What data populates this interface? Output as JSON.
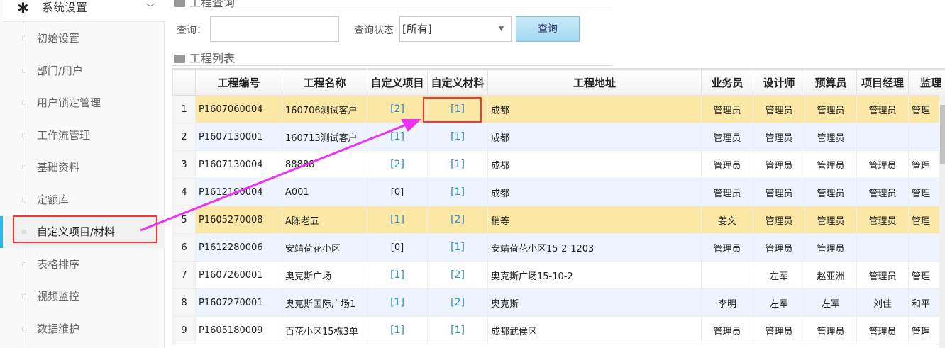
{
  "sidebar": {
    "section": "系统设置",
    "icon": "gear-icon",
    "items": [
      {
        "label": "初始设置"
      },
      {
        "label": "部门/用户"
      },
      {
        "label": "用户锁定管理"
      },
      {
        "label": "工作流管理"
      },
      {
        "label": "基础资料"
      },
      {
        "label": "定额库"
      },
      {
        "label": "自定义项目/材料",
        "active": true
      },
      {
        "label": "表格排序"
      },
      {
        "label": "视频监控"
      },
      {
        "label": "数据维护"
      }
    ]
  },
  "query": {
    "section": "工程查询",
    "query_label": "查询：",
    "query_value": "",
    "status_label": "查询状态",
    "status_value": "[所有]",
    "button": "查询"
  },
  "list": {
    "section": "工程列表",
    "columns": [
      "",
      "工程编号",
      "工程名称",
      "自定义项目",
      "自定义材料",
      "工程地址",
      "业务员",
      "设计师",
      "预算员",
      "项目经理",
      "监理"
    ],
    "rows": [
      [
        "1",
        "P1607060004",
        "160706测试客户",
        "[2]",
        "[1]",
        "成都",
        "管理员",
        "管理员",
        "管理员",
        "管理员",
        "管理"
      ],
      [
        "2",
        "P1607130001",
        "160713测试客户",
        "[1]",
        "[1]",
        "成都",
        "管理员",
        "管理员",
        "管理员",
        "",
        ""
      ],
      [
        "3",
        "P1607130004",
        "88888",
        "[2]",
        "[1]",
        "成都",
        "管理员",
        "管理员",
        "管理员",
        "管理员",
        "管理"
      ],
      [
        "4",
        "P1612190004",
        "A001",
        "[0]",
        "[1]",
        "成都",
        "管理员",
        "管理员",
        "管理员",
        "管理员",
        "管理"
      ],
      [
        "5",
        "P1605270008",
        "A陈老五",
        "[1]",
        "[2]",
        "稍等",
        "姜文",
        "管理员",
        "管理员",
        "管理员",
        "管理"
      ],
      [
        "6",
        "P1612280006",
        "安靖荷花小区",
        "[0]",
        "[1]",
        "安靖荷花小区15-2-1203",
        "管理员",
        "管理员",
        "管理员",
        "",
        ""
      ],
      [
        "7",
        "P1607260001",
        "奥克斯广场",
        "[1]",
        "[2]",
        "奥克斯广场15-10-2",
        "",
        "左军",
        "赵亚洲",
        "管理员",
        "管理"
      ],
      [
        "8",
        "P1607270001",
        "奥克斯国际广场1",
        "[1]",
        "[2]",
        "奥克斯",
        "李明",
        "左军",
        "左军",
        "刘佳",
        "和平"
      ],
      [
        "9",
        "P1605180009",
        "百花小区15栋3单",
        "[1]",
        "[1]",
        "成都武侯区",
        "管理员",
        "管理员",
        "管理员",
        "管理员",
        "管理"
      ]
    ],
    "highlighted_rows": [
      1,
      5
    ]
  },
  "annotation": {
    "color": "#ee33ee",
    "box_color": "#ff3333"
  }
}
